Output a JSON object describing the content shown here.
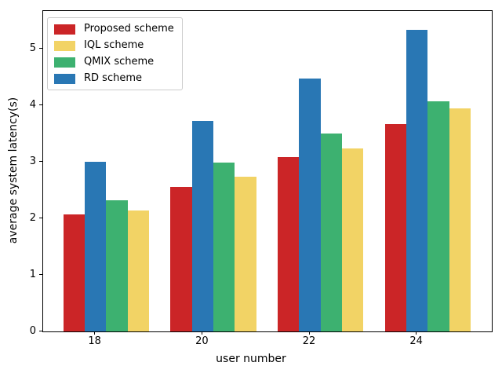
{
  "chart_data": {
    "type": "bar",
    "title": "",
    "xlabel": "user number",
    "ylabel": "average system latency(s)",
    "categories": [
      "18",
      "20",
      "22",
      "24"
    ],
    "series": [
      {
        "name": "Proposed scheme",
        "color": "#cb2527",
        "offset": -0.2,
        "values": [
          2.08,
          2.56,
          3.09,
          3.68
        ]
      },
      {
        "name": "IQL scheme",
        "color": "#f2d365",
        "offset": 0.4,
        "values": [
          2.15,
          2.75,
          3.25,
          3.95
        ]
      },
      {
        "name": "QMIX scheme",
        "color": "#3db170",
        "offset": 0.2,
        "values": [
          2.33,
          2.99,
          3.51,
          4.08
        ]
      },
      {
        "name": "RD scheme",
        "color": "#2977b4",
        "offset": 0.0,
        "values": [
          3.01,
          3.73,
          4.49,
          5.34
        ]
      }
    ],
    "bar_width_units": 0.2,
    "yticks": [
      0,
      1,
      2,
      3,
      4,
      5
    ],
    "ylim": [
      0,
      5.68
    ],
    "grid": false,
    "legend": {
      "position": "upper-left",
      "entries": [
        "Proposed scheme",
        "IQL scheme",
        "QMIX scheme",
        "RD scheme"
      ]
    },
    "axis_color": "#000000",
    "background_color": "#ffffff"
  }
}
